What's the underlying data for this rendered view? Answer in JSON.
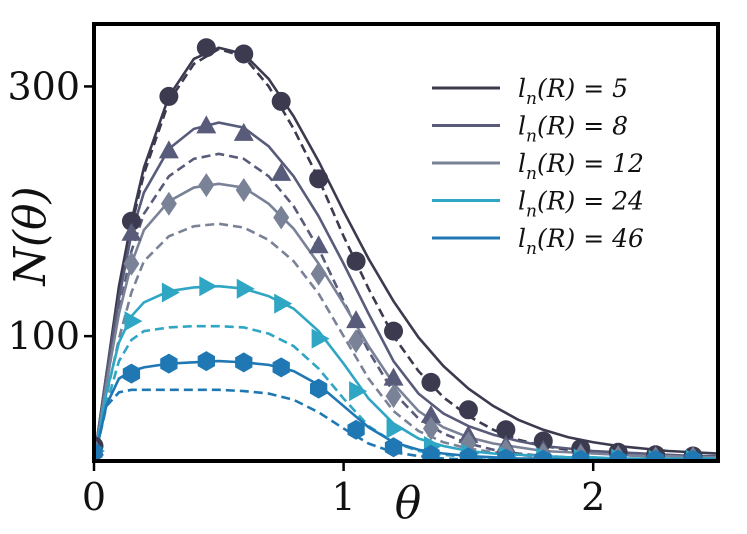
{
  "chart_data": {
    "type": "line",
    "xlabel": "θ",
    "ylabel": "N(θ)",
    "xlim": [
      0,
      2.5
    ],
    "ylim": [
      0,
      350
    ],
    "xticks": [
      0,
      1,
      2
    ],
    "xtick_labels": [
      "0",
      "1",
      "2"
    ],
    "yticks": [
      100,
      300
    ],
    "ytick_labels": [
      "100",
      "300"
    ],
    "legend_position": "top-right",
    "grid": false,
    "series": [
      {
        "name": "l_n(R) = 5",
        "label_parts": {
          "pre": "l",
          "sub": "n",
          "post": "(R) = 5"
        },
        "color": "#3b3a4f",
        "marker": "circle",
        "markers": {
          "x": [
            0.0,
            0.15,
            0.3,
            0.45,
            0.6,
            0.75,
            0.9,
            1.05,
            1.2,
            1.35,
            1.5,
            1.65,
            1.8,
            1.95,
            2.1,
            2.25,
            2.4
          ],
          "y": [
            12,
            192,
            292,
            331,
            326,
            288,
            226,
            160,
            104,
            63,
            41,
            25,
            16,
            10,
            7,
            5,
            4
          ]
        },
        "solid": {
          "x": [
            0,
            0.05,
            0.1,
            0.15,
            0.2,
            0.3,
            0.4,
            0.5,
            0.6,
            0.7,
            0.8,
            0.9,
            1.0,
            1.1,
            1.2,
            1.3,
            1.4,
            1.5,
            1.6,
            1.7,
            1.8,
            1.9,
            2.0,
            2.1,
            2.2,
            2.3,
            2.4,
            2.5
          ],
          "y": [
            0,
            70,
            140,
            192,
            235,
            292,
            322,
            331,
            326,
            306,
            276,
            240,
            200,
            162,
            128,
            99,
            76,
            58,
            44,
            33,
            25,
            19,
            15,
            12,
            10,
            8,
            7,
            6
          ]
        },
        "dashed": {
          "x": [
            0,
            0.05,
            0.1,
            0.15,
            0.2,
            0.3,
            0.4,
            0.5,
            0.6,
            0.7,
            0.8,
            0.9,
            1.0,
            1.1,
            1.2,
            1.3,
            1.4,
            1.5,
            1.6,
            1.7,
            1.8,
            1.9,
            2.0,
            2.1,
            2.2,
            2.3,
            2.4,
            2.5
          ],
          "y": [
            0,
            68,
            136,
            188,
            230,
            288,
            318,
            330,
            324,
            300,
            266,
            226,
            180,
            138,
            100,
            72,
            51,
            36,
            25,
            17,
            12,
            9,
            7,
            5,
            4,
            3,
            3,
            2
          ]
        }
      },
      {
        "name": "l_n(R) = 8",
        "label_parts": {
          "pre": "l",
          "sub": "n",
          "post": "(R) = 8"
        },
        "color": "#585b7a",
        "marker": "triangle",
        "markers": {
          "x": [
            0.0,
            0.15,
            0.3,
            0.45,
            0.6,
            0.75,
            0.9,
            1.05,
            1.2,
            1.35,
            1.5,
            1.65,
            1.8,
            1.95,
            2.1,
            2.25,
            2.4
          ],
          "y": [
            10,
            182,
            248,
            268,
            262,
            230,
            172,
            112,
            66,
            36,
            20,
            12,
            8,
            6,
            4,
            3,
            3
          ]
        },
        "solid": {
          "x": [
            0,
            0.05,
            0.1,
            0.15,
            0.2,
            0.3,
            0.4,
            0.5,
            0.6,
            0.7,
            0.8,
            0.9,
            1.0,
            1.1,
            1.2,
            1.3,
            1.4,
            1.5,
            1.6,
            1.7,
            1.8,
            1.9,
            2.0,
            2.1,
            2.2,
            2.3,
            2.4,
            2.5
          ],
          "y": [
            0,
            70,
            130,
            182,
            215,
            250,
            266,
            271,
            267,
            252,
            228,
            196,
            158,
            118,
            80,
            54,
            38,
            28,
            21,
            16,
            12,
            10,
            8,
            7,
            6,
            5,
            4,
            4
          ]
        },
        "dashed": {
          "x": [
            0,
            0.05,
            0.1,
            0.15,
            0.2,
            0.3,
            0.4,
            0.5,
            0.6,
            0.7,
            0.8,
            0.9,
            1.0,
            1.1,
            1.2,
            1.3,
            1.4,
            1.5,
            1.6,
            1.7,
            1.8,
            1.9,
            2.0,
            2.1,
            2.2,
            2.3,
            2.4,
            2.5
          ],
          "y": [
            0,
            64,
            120,
            168,
            198,
            228,
            242,
            246,
            242,
            228,
            204,
            170,
            128,
            88,
            55,
            34,
            22,
            14,
            9,
            6,
            4,
            3,
            2,
            2,
            1,
            1,
            1,
            1
          ]
        }
      },
      {
        "name": "l_n(R) = 12",
        "label_parts": {
          "pre": "l",
          "sub": "n",
          "post": "(R) = 12"
        },
        "color": "#7a8297",
        "marker": "diamond",
        "markers": {
          "x": [
            0.0,
            0.15,
            0.3,
            0.45,
            0.6,
            0.75,
            0.9,
            1.05,
            1.2,
            1.35,
            1.5,
            1.65,
            1.8,
            1.95,
            2.1,
            2.25,
            2.4
          ],
          "y": [
            9,
            158,
            206,
            221,
            217,
            195,
            150,
            96,
            52,
            26,
            14,
            8,
            5,
            4,
            3,
            2,
            2
          ]
        },
        "solid": {
          "x": [
            0,
            0.05,
            0.1,
            0.15,
            0.2,
            0.3,
            0.4,
            0.5,
            0.6,
            0.7,
            0.8,
            0.9,
            1.0,
            1.1,
            1.2,
            1.3,
            1.4,
            1.5,
            1.6,
            1.7,
            1.8,
            1.9,
            2.0,
            2.1,
            2.2,
            2.3,
            2.4,
            2.5
          ],
          "y": [
            0,
            62,
            118,
            158,
            185,
            208,
            219,
            222,
            219,
            206,
            186,
            158,
            126,
            92,
            62,
            40,
            27,
            19,
            14,
            11,
            8,
            7,
            6,
            5,
            4,
            4,
            3,
            3
          ]
        },
        "dashed": {
          "x": [
            0,
            0.05,
            0.1,
            0.15,
            0.2,
            0.3,
            0.4,
            0.5,
            0.6,
            0.7,
            0.8,
            0.9,
            1.0,
            1.1,
            1.2,
            1.3,
            1.4,
            1.5,
            1.6,
            1.7,
            1.8,
            1.9,
            2.0,
            2.1,
            2.2,
            2.3,
            2.4,
            2.5
          ],
          "y": [
            0,
            52,
            98,
            135,
            160,
            180,
            188,
            190,
            187,
            177,
            160,
            134,
            100,
            66,
            40,
            24,
            15,
            10,
            7,
            5,
            3,
            2,
            2,
            1,
            1,
            1,
            1,
            1
          ]
        }
      },
      {
        "name": "l_n(R) = 24",
        "label_parts": {
          "pre": "l",
          "sub": "n",
          "post": "(R) = 24"
        },
        "color": "#2fa6c4",
        "marker": "triangle-right",
        "markers": {
          "x": [
            0.0,
            0.15,
            0.3,
            0.45,
            0.6,
            0.75,
            0.9,
            1.05,
            1.2,
            1.35,
            1.5,
            1.65,
            1.8,
            1.95,
            2.1,
            2.25,
            2.4
          ],
          "y": [
            8,
            112,
            135,
            140,
            138,
            126,
            98,
            56,
            26,
            12,
            6,
            4,
            3,
            2,
            2,
            1,
            1
          ]
        },
        "solid": {
          "x": [
            0,
            0.05,
            0.1,
            0.15,
            0.2,
            0.3,
            0.4,
            0.5,
            0.6,
            0.7,
            0.8,
            0.9,
            1.0,
            1.1,
            1.2,
            1.3,
            1.4,
            1.5,
            1.6,
            1.7,
            1.8,
            1.9,
            2.0,
            2.1,
            2.2,
            2.3,
            2.4,
            2.5
          ],
          "y": [
            0,
            55,
            95,
            116,
            127,
            136,
            139,
            140,
            138,
            132,
            122,
            104,
            78,
            50,
            30,
            18,
            12,
            8,
            6,
            5,
            4,
            3,
            3,
            2,
            2,
            2,
            2,
            2
          ]
        },
        "dashed": {
          "x": [
            0,
            0.05,
            0.1,
            0.15,
            0.2,
            0.3,
            0.4,
            0.5,
            0.6,
            0.7,
            0.8,
            0.9,
            1.0,
            1.1,
            1.2,
            1.3,
            1.4,
            1.5,
            1.6,
            1.7,
            1.8,
            1.9,
            2.0,
            2.1,
            2.2,
            2.3,
            2.4,
            2.5
          ],
          "y": [
            0,
            45,
            80,
            97,
            104,
            107,
            108,
            108,
            107,
            102,
            92,
            74,
            50,
            28,
            15,
            8,
            5,
            3,
            2,
            1,
            1,
            1,
            1,
            0,
            0,
            0,
            0,
            0
          ]
        }
      },
      {
        "name": "l_n(R) = 46",
        "label_parts": {
          "pre": "l",
          "sub": "n",
          "post": "(R) = 46"
        },
        "color": "#1f78b4",
        "marker": "hexagon",
        "markers": {
          "x": [
            0.0,
            0.15,
            0.3,
            0.45,
            0.6,
            0.75,
            0.9,
            1.05,
            1.2,
            1.35,
            1.5,
            1.65,
            1.8,
            1.95,
            2.1,
            2.25,
            2.4
          ],
          "y": [
            7,
            70,
            78,
            80,
            79,
            75,
            58,
            25,
            11,
            5,
            3,
            2,
            1,
            1,
            1,
            1,
            1
          ]
        },
        "solid": {
          "x": [
            0,
            0.05,
            0.1,
            0.15,
            0.2,
            0.3,
            0.4,
            0.5,
            0.6,
            0.7,
            0.8,
            0.9,
            1.0,
            1.1,
            1.2,
            1.3,
            1.4,
            1.5,
            1.6,
            1.7,
            1.8,
            1.9,
            2.0,
            2.1,
            2.2,
            2.3,
            2.4,
            2.5
          ],
          "y": [
            0,
            45,
            66,
            72,
            75,
            78,
            79,
            80,
            79,
            77,
            72,
            61,
            44,
            27,
            15,
            9,
            6,
            4,
            3,
            2,
            2,
            1,
            1,
            1,
            1,
            1,
            1,
            1
          ]
        },
        "dashed": {
          "x": [
            0,
            0.05,
            0.1,
            0.15,
            0.2,
            0.3,
            0.4,
            0.5,
            0.6,
            0.7,
            0.8,
            0.9,
            1.0,
            1.1,
            1.2,
            1.3,
            1.4,
            1.5,
            1.6,
            1.7,
            1.8,
            1.9,
            2.0,
            2.1,
            2.2,
            2.3,
            2.4,
            2.5
          ],
          "y": [
            0,
            44,
            55,
            57,
            57,
            57,
            57,
            57,
            56,
            54,
            49,
            39,
            26,
            14,
            7,
            4,
            2,
            1,
            1,
            0,
            0,
            0,
            0,
            0,
            0,
            0,
            0,
            0
          ]
        }
      }
    ]
  }
}
